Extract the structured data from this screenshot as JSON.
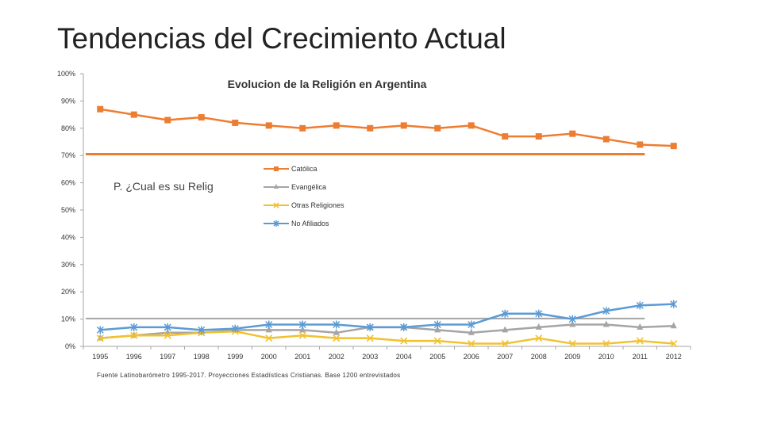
{
  "slide": {
    "title": "Tendencias del Crecimiento Actual"
  },
  "chart_data": {
    "type": "line",
    "title": "Evolucion de la Religión en Argentina",
    "annotation": "P. ¿Cual es su Relig",
    "source": "Fuente Latinobarómetro 1995-2017.  Proyecciones Estadísticas Cristianas. Base 1200 entrevistados",
    "ylim": [
      0,
      100
    ],
    "yticks": [
      "0%",
      "10%",
      "20%",
      "30%",
      "40%",
      "50%",
      "60%",
      "70%",
      "80%",
      "90%",
      "100%"
    ],
    "categories": [
      "1995",
      "1996",
      "1997",
      "1998",
      "1999",
      "2000",
      "2001",
      "2002",
      "2003",
      "2004",
      "2005",
      "2006",
      "2007",
      "2008",
      "2009",
      "2010",
      "2011",
      "2012"
    ],
    "legend_position": "center",
    "reference_lines": [
      {
        "value": 70.5,
        "color": "#ED7D31",
        "from": "1995",
        "to": "2011"
      },
      {
        "value": 10.2,
        "color": "#A5A5A5",
        "from": "1995",
        "to": "2011"
      }
    ],
    "series": [
      {
        "name": "Católica",
        "color": "#ED7D31",
        "marker": "square",
        "values": [
          87,
          85,
          83,
          84,
          82,
          81,
          80,
          81,
          80,
          81,
          80,
          81,
          77,
          77,
          78,
          76,
          74,
          73.5
        ]
      },
      {
        "name": "Evangélica",
        "color": "#A5A5A5",
        "marker": "triangle",
        "values": [
          3,
          4,
          5,
          5,
          6,
          6,
          6,
          5,
          7,
          7,
          6,
          5,
          6,
          7,
          8,
          8,
          7,
          7.5
        ]
      },
      {
        "name": "Otras  Religiones",
        "color": "#F2C12E",
        "marker": "x",
        "values": [
          3,
          4,
          4,
          5,
          5.5,
          3,
          4,
          3,
          3,
          2,
          2,
          1,
          1,
          3,
          1,
          1,
          2,
          1
        ]
      },
      {
        "name": "No Afiliados",
        "color": "#5B9BD5",
        "marker": "star",
        "values": [
          6,
          7,
          7,
          6,
          6.5,
          8,
          8,
          8,
          7,
          7,
          8,
          8,
          12,
          12,
          10,
          13,
          15,
          15.5
        ]
      }
    ]
  }
}
